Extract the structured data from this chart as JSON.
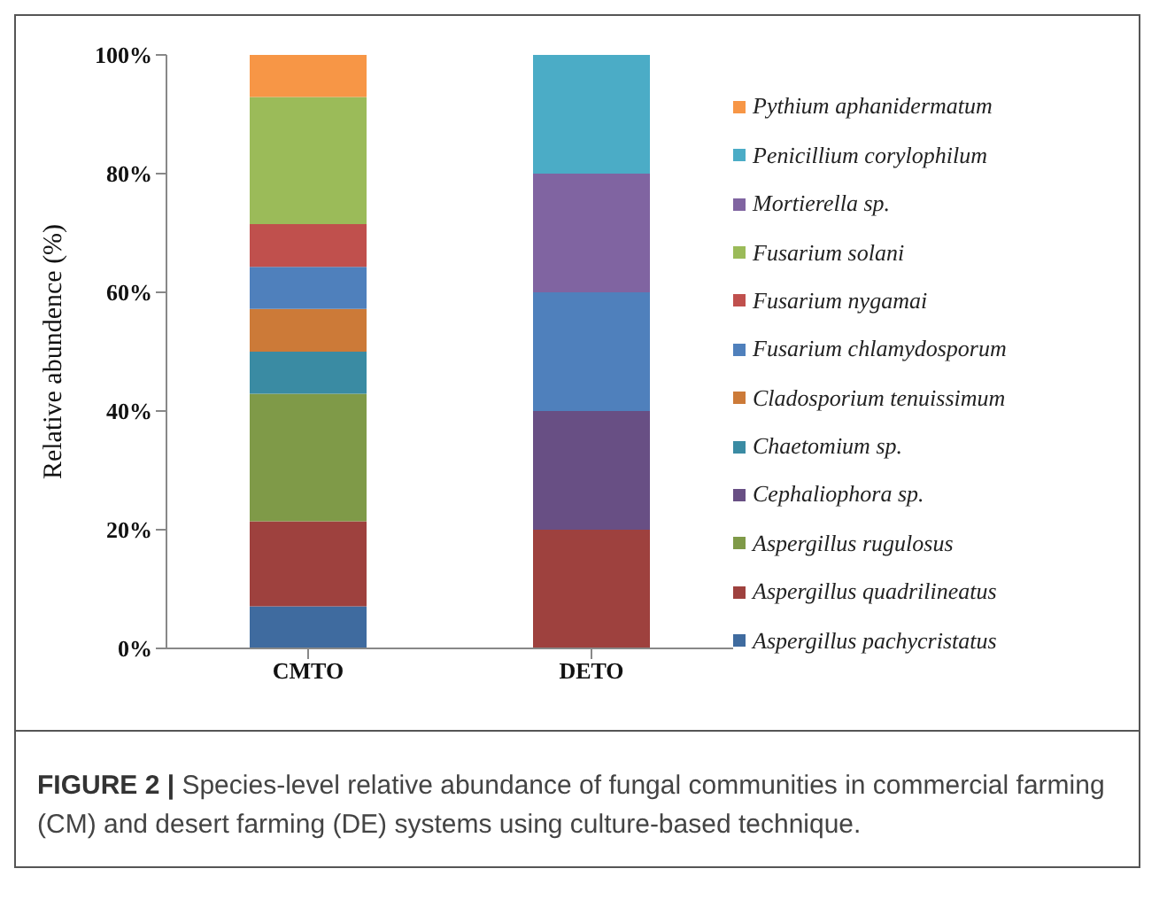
{
  "chart_data": {
    "type": "bar",
    "stacked": true,
    "ylabel": "Relative abundence (%)",
    "categories": [
      "CMTO",
      "DETO"
    ],
    "series": [
      {
        "name": "Aspergillus pachycristatus",
        "color": "#3f6b9f",
        "values": [
          7.1,
          0
        ]
      },
      {
        "name": "Aspergillus quadrilineatus",
        "color": "#9e413e",
        "values": [
          14.3,
          20
        ]
      },
      {
        "name": "Aspergillus rugulosus",
        "color": "#7f9a48",
        "values": [
          21.5,
          0
        ]
      },
      {
        "name": "Cephaliophora sp.",
        "color": "#684f84",
        "values": [
          0,
          20
        ]
      },
      {
        "name": "Chaetomium sp.",
        "color": "#3a8ba3",
        "values": [
          7.1,
          0
        ]
      },
      {
        "name": "Cladosporium tenuissimum",
        "color": "#cc7a38",
        "values": [
          7.2,
          0
        ]
      },
      {
        "name": "Fusarium chlamydosporum",
        "color": "#4f80bc",
        "values": [
          7.1,
          20
        ]
      },
      {
        "name": "Fusarium nygamai",
        "color": "#c0504d",
        "values": [
          7.2,
          0
        ]
      },
      {
        "name": "Fusarium solani",
        "color": "#9bbb59",
        "values": [
          21.4,
          0
        ]
      },
      {
        "name": "Mortierella sp.",
        "color": "#8064a1",
        "values": [
          0,
          20
        ]
      },
      {
        "name": "Penicillium corylophilum",
        "color": "#4bacc6",
        "values": [
          0,
          20
        ]
      },
      {
        "name": "Pythium aphanidermatum",
        "color": "#f79646",
        "values": [
          7.1,
          0
        ]
      }
    ],
    "ylim": [
      0,
      100
    ],
    "yticks": [
      {
        "value": 0,
        "label": "0%"
      },
      {
        "value": 20,
        "label": "20%"
      },
      {
        "value": 40,
        "label": "40%"
      },
      {
        "value": 60,
        "label": "60%"
      },
      {
        "value": 80,
        "label": "80%"
      },
      {
        "value": 100,
        "label": "100%"
      }
    ],
    "grid": false,
    "legend": "right",
    "annotations": [
      "FIGURE 2 | Species-level relative abundance of fungal communities in commercial farming (CM) and desert farming (DE) systems using culture-based technique."
    ]
  }
}
